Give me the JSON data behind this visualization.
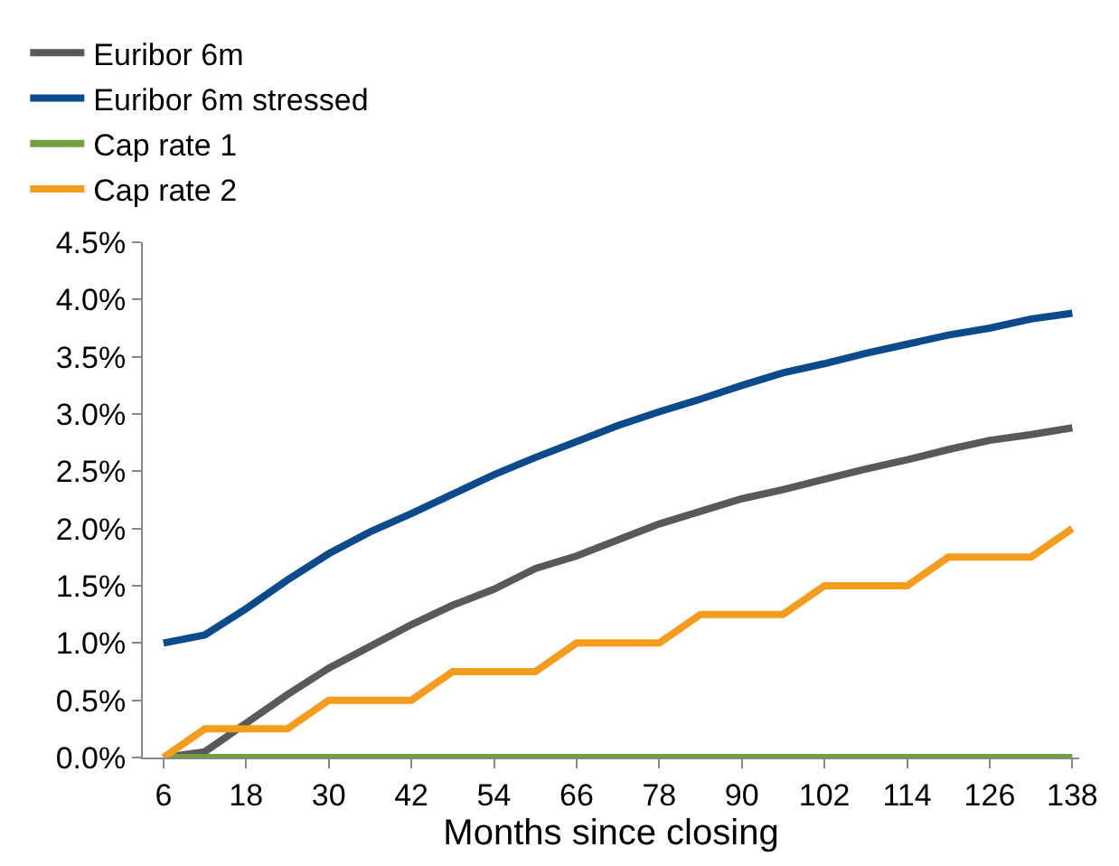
{
  "chart_data": {
    "type": "line",
    "xlabel": "Months since closing",
    "x": [
      6,
      12,
      18,
      24,
      30,
      36,
      42,
      48,
      54,
      60,
      66,
      72,
      78,
      84,
      90,
      96,
      102,
      108,
      114,
      120,
      126,
      132,
      138
    ],
    "series": [
      {
        "name": "Euribor 6m",
        "color": "#595959",
        "values": [
          0,
          0.05,
          0.3,
          0.55,
          0.78,
          0.97,
          1.16,
          1.33,
          1.47,
          1.65,
          1.76,
          1.9,
          2.04,
          2.15,
          2.26,
          2.34,
          2.43,
          2.52,
          2.6,
          2.69,
          2.77,
          2.82,
          2.88
        ]
      },
      {
        "name": "Euribor 6m stressed",
        "color": "#0b4a8b",
        "values": [
          1.0,
          1.07,
          1.3,
          1.55,
          1.78,
          1.97,
          2.13,
          2.3,
          2.47,
          2.62,
          2.76,
          2.9,
          3.02,
          3.13,
          3.25,
          3.36,
          3.44,
          3.53,
          3.61,
          3.69,
          3.75,
          3.83,
          3.88
        ]
      },
      {
        "name": "Cap rate 1",
        "color": "#70a040",
        "values": [
          0,
          0,
          0,
          0,
          0,
          0,
          0,
          0,
          0,
          0,
          0,
          0,
          0,
          0,
          0,
          0,
          0,
          0,
          0,
          0,
          0,
          0,
          0
        ]
      },
      {
        "name": "Cap rate 2",
        "color": "#f39c1e",
        "values": [
          0,
          0.25,
          0.25,
          0.25,
          0.5,
          0.5,
          0.5,
          0.75,
          0.75,
          0.75,
          1.0,
          1.0,
          1.0,
          1.25,
          1.25,
          1.25,
          1.5,
          1.5,
          1.5,
          1.75,
          1.75,
          1.75,
          2.0
        ]
      }
    ],
    "xlim": [
      3,
      139
    ],
    "xticks": [
      6,
      18,
      30,
      42,
      54,
      66,
      78,
      90,
      102,
      114,
      126,
      138
    ],
    "ylim": [
      0,
      4.5
    ],
    "yticks": [
      {
        "value": 0,
        "label": "0.0%"
      },
      {
        "value": 0.5,
        "label": "0.5%"
      },
      {
        "value": 1,
        "label": "1.0%"
      },
      {
        "value": 1.5,
        "label": "1.5%"
      },
      {
        "value": 2,
        "label": "2.0%"
      },
      {
        "value": 2.5,
        "label": "2.5%"
      },
      {
        "value": 3,
        "label": "3.0%"
      },
      {
        "value": 3.5,
        "label": "3.5%"
      },
      {
        "value": 4,
        "label": "4.0%"
      },
      {
        "value": 4.5,
        "label": "4.5%"
      }
    ],
    "legend": "top",
    "marker": "none",
    "line_style": "solid"
  }
}
